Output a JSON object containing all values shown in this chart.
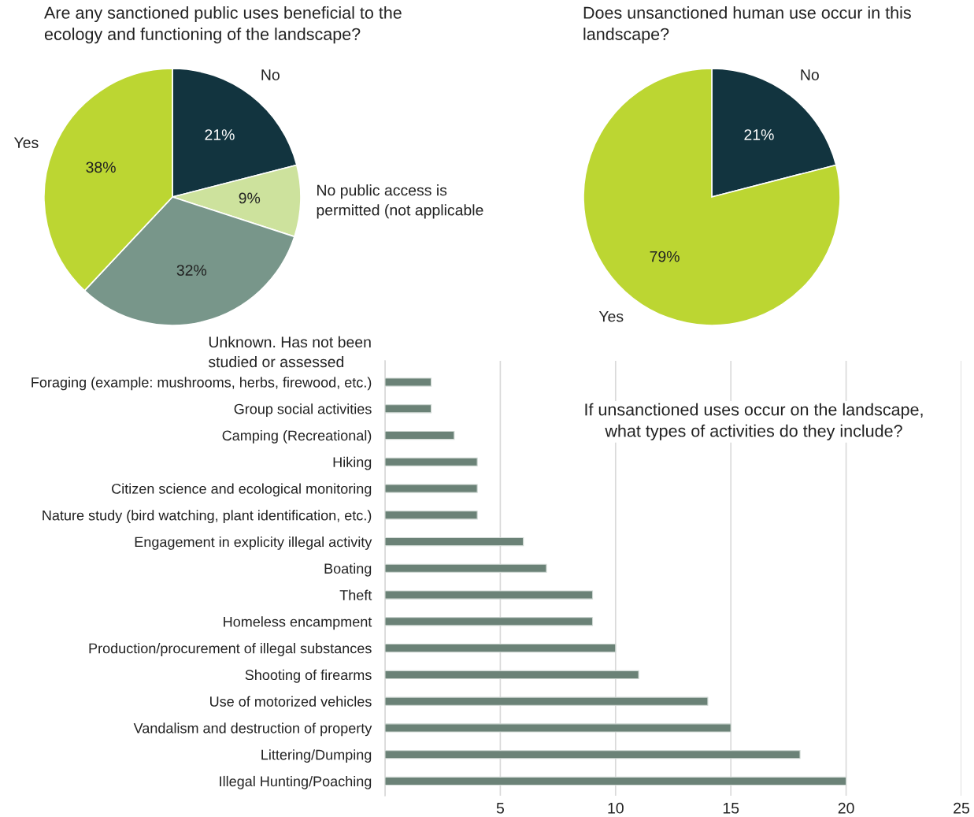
{
  "chart_data": [
    {
      "type": "pie",
      "title": "Are any sanctioned public uses beneficial to the\necology and functioning of the landscape?",
      "categories": [
        "No",
        "No public access is\npermitted (not applicable",
        "Unknown. Has not been\nstudied or assessed",
        "Yes"
      ],
      "values": [
        21,
        9,
        32,
        38
      ],
      "value_labels": [
        "21%",
        "9%",
        "32%",
        "38%"
      ],
      "colors": [
        "#12343f",
        "#cde29d",
        "#78968a",
        "#bcd632"
      ]
    },
    {
      "type": "pie",
      "title": "Does unsanctioned human use occur in this\nlandscape?",
      "categories": [
        "No",
        "Yes"
      ],
      "values": [
        21,
        79
      ],
      "value_labels": [
        "21%",
        "79%"
      ],
      "colors": [
        "#12343f",
        "#bcd632"
      ]
    },
    {
      "type": "bar",
      "orientation": "horizontal",
      "title": "If unsanctioned uses occur on the landscape,\nwhat types of activities do they include?",
      "categories": [
        "Foraging (example: mushrooms, herbs, firewood, etc.)",
        "Group social activities",
        "Camping (Recreational)",
        "Hiking",
        "Citizen science and ecological monitoring",
        "Nature study (bird watching, plant identification, etc.)",
        "Engagement in explicity illegal activity",
        "Boating",
        "Theft",
        "Homeless encampment",
        "Production/procurement of illegal substances",
        "Shooting of firearms",
        "Use of motorized vehicles",
        "Vandalism and destruction of property",
        "Littering/Dumping",
        "Illegal Hunting/Poaching"
      ],
      "values": [
        2,
        2,
        3,
        4,
        4,
        4,
        6,
        7,
        9,
        9,
        10,
        11,
        14,
        15,
        18,
        20
      ],
      "color": "#6b8277",
      "xlim": [
        0,
        25
      ],
      "xticks": [
        {
          "value": 0,
          "label": null
        },
        5,
        10,
        15,
        20,
        25
      ],
      "grid": "x"
    }
  ]
}
